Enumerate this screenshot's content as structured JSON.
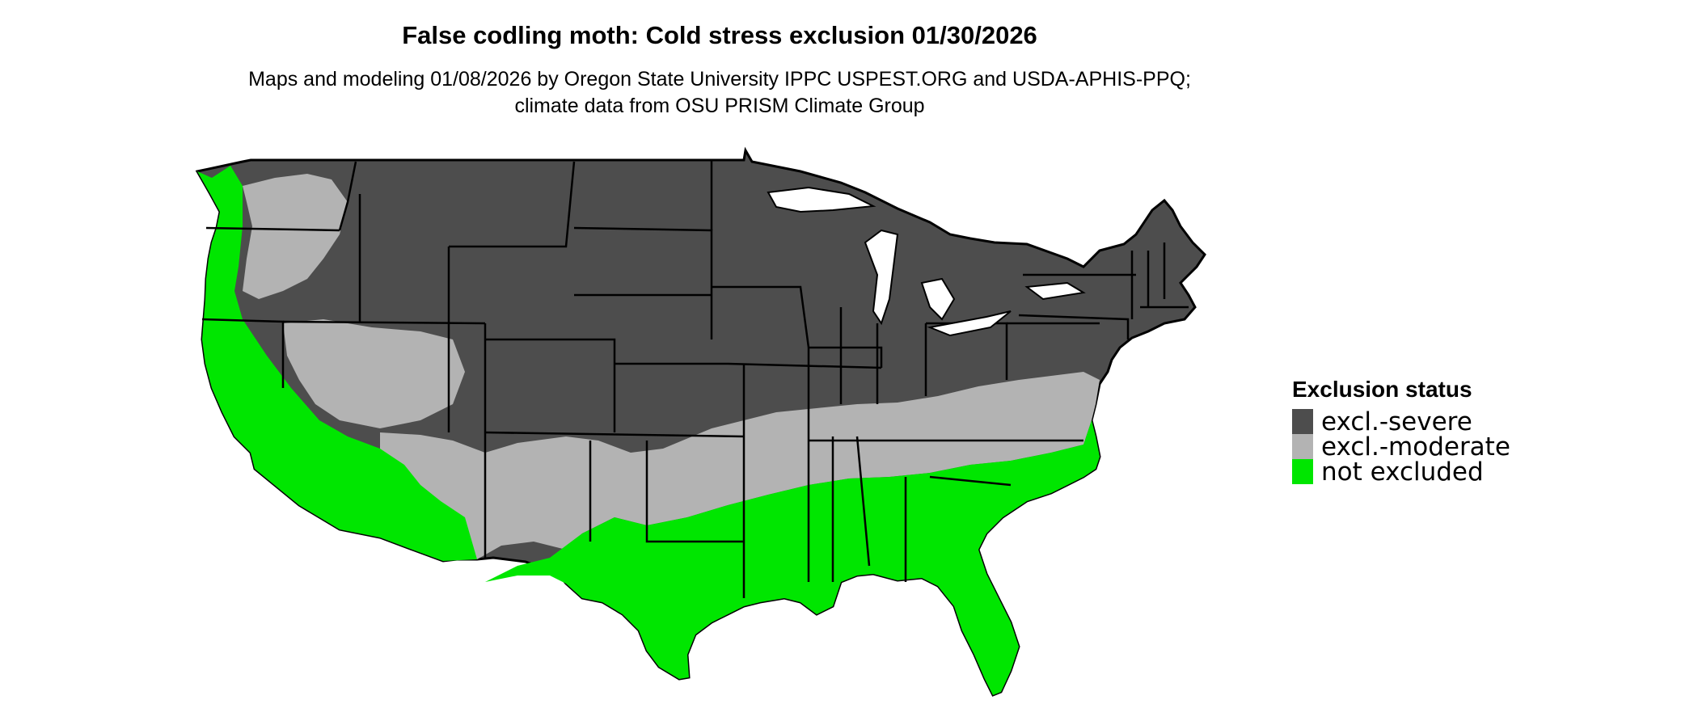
{
  "title": "False codling moth: Cold stress exclusion 01/30/2026",
  "subtitle": "Maps and modeling 01/08/2026 by Oregon State University IPPC USPEST.ORG and USDA-APHIS-PPQ; climate data from OSU PRISM Climate Group",
  "legend": {
    "title": "Exclusion status",
    "items": [
      {
        "label": "excl.-severe",
        "color": "#4d4d4d"
      },
      {
        "label": "excl.-moderate",
        "color": "#b3b3b3"
      },
      {
        "label": "not excluded",
        "color": "#00e600"
      }
    ]
  },
  "colors": {
    "severe": "#4d4d4d",
    "moderate": "#b3b3b3",
    "none": "#00e600",
    "border": "#000000"
  }
}
